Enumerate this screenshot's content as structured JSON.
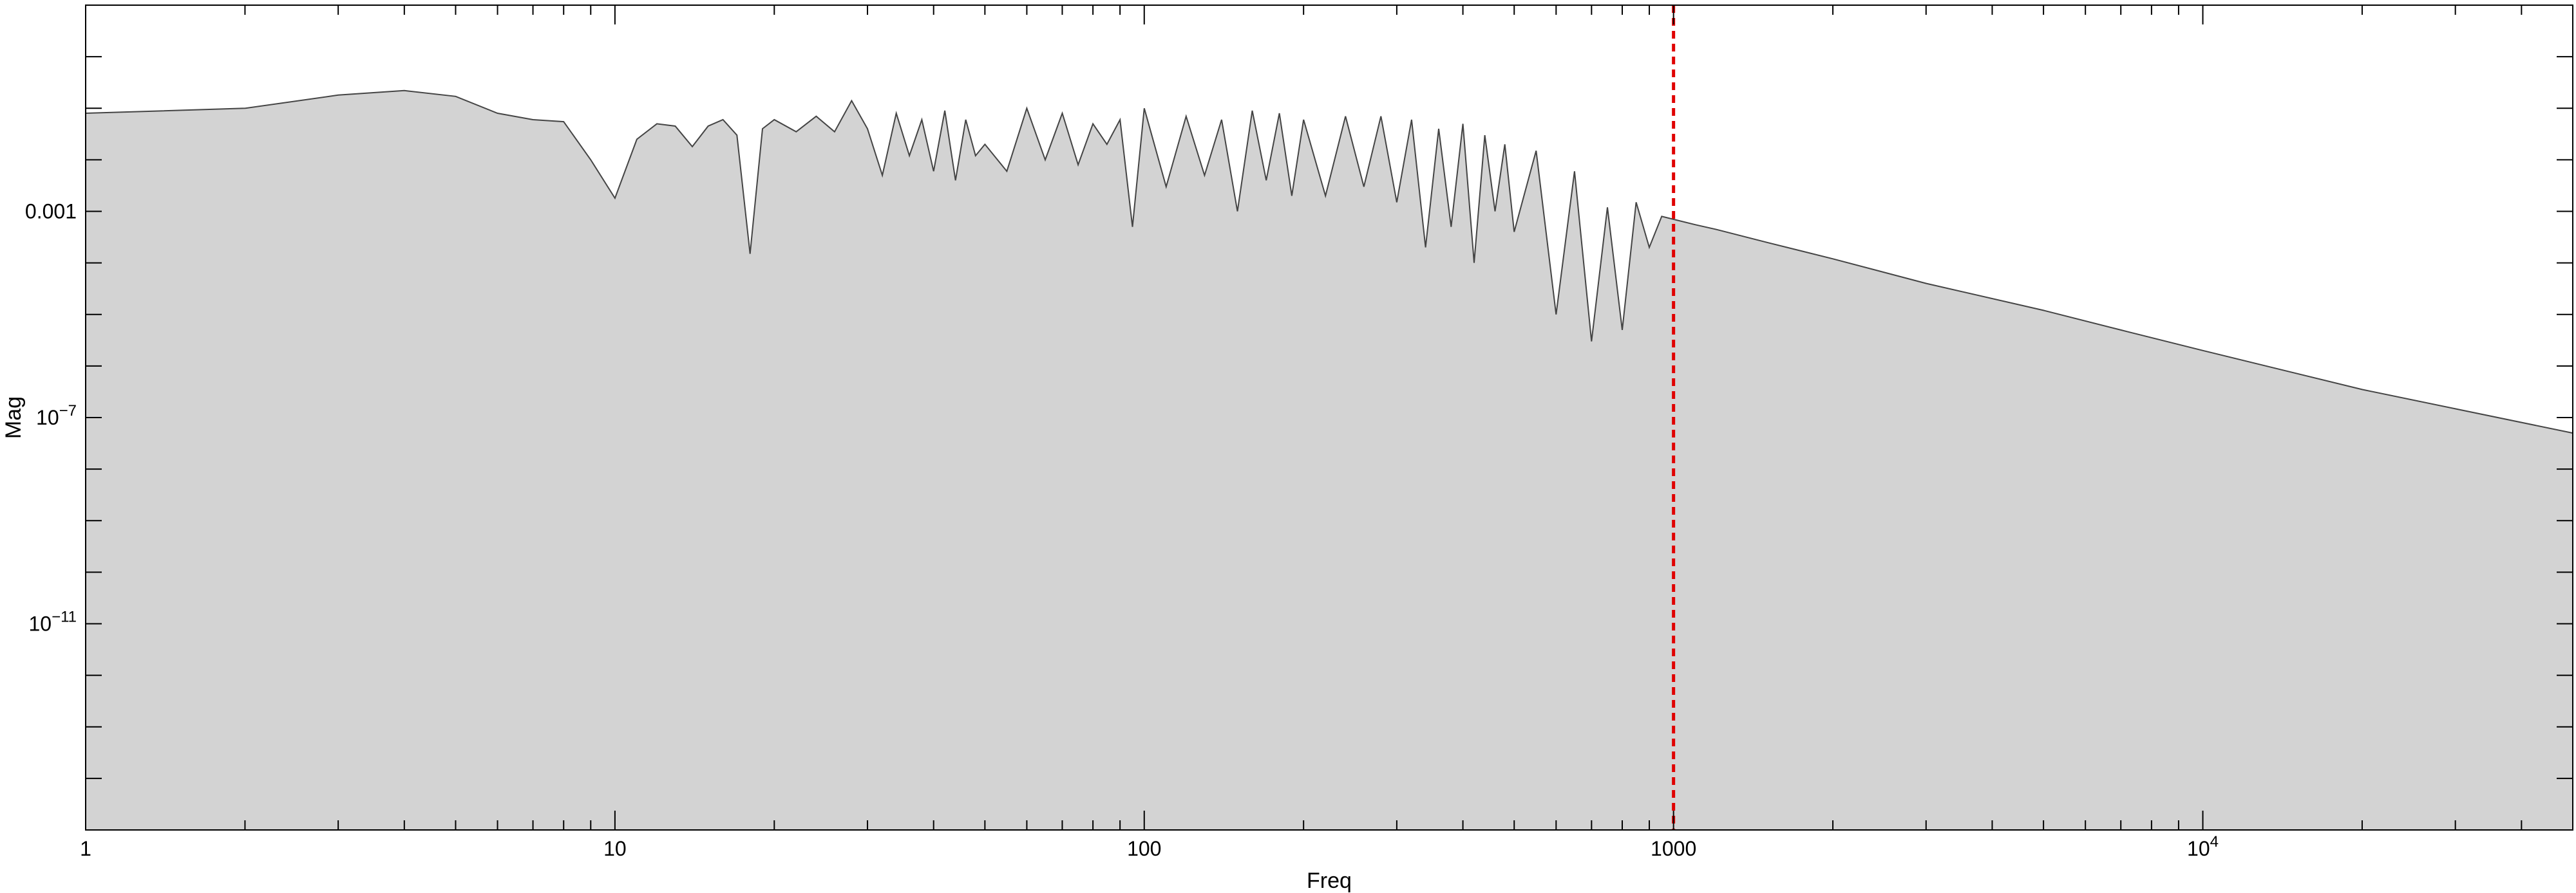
{
  "chart_data": {
    "type": "area",
    "title": "",
    "xlabel": "Freq",
    "ylabel": "Mag",
    "xscale": "log",
    "yscale": "log",
    "xlim": [
      1,
      50000
    ],
    "ylim": [
      1e-15,
      10
    ],
    "grid": false,
    "x_ticks": [
      {
        "value": 1,
        "label": "1"
      },
      {
        "value": 10,
        "label": "10"
      },
      {
        "value": 100,
        "label": "100"
      },
      {
        "value": 1000,
        "label": "1000"
      },
      {
        "value": 10000,
        "label": "10",
        "exp": "4"
      }
    ],
    "y_ticks": [
      {
        "value": 0.001,
        "label": "0.001"
      },
      {
        "value": 1e-07,
        "label": "10",
        "exp": "−7"
      },
      {
        "value": 1e-11,
        "label": "10",
        "exp": "−11"
      }
    ],
    "series": [
      {
        "x": [
          1,
          2,
          3,
          4,
          5,
          6,
          7,
          8,
          9,
          10,
          11,
          12,
          13,
          14,
          15,
          16,
          17,
          18,
          19,
          20,
          22,
          24,
          26,
          28,
          30,
          32,
          34,
          36,
          38,
          40,
          42,
          44,
          46,
          48,
          50,
          55,
          60,
          65,
          70,
          75,
          80,
          85,
          90,
          95,
          100,
          110,
          120,
          130,
          140,
          150,
          160,
          170,
          180,
          190,
          200,
          220,
          240,
          260,
          280,
          300,
          320,
          340,
          360,
          380,
          400,
          420,
          440,
          460,
          480,
          500,
          550,
          600,
          650,
          700,
          750,
          800,
          850,
          900,
          950,
          1000,
          1100,
          1200,
          1500,
          2000,
          3000,
          5000,
          7000,
          10000,
          20000,
          50000
        ],
        "y": [
          0.08,
          0.1,
          0.18,
          0.22,
          0.17,
          0.08,
          0.06,
          0.055,
          0.01,
          0.0018,
          0.025,
          0.05,
          0.045,
          0.018,
          0.045,
          0.06,
          0.03,
          0.00015,
          0.04,
          0.06,
          0.035,
          0.07,
          0.035,
          0.14,
          0.04,
          0.005,
          0.08,
          0.012,
          0.06,
          0.006,
          0.09,
          0.004,
          0.06,
          0.012,
          0.02,
          0.006,
          0.1,
          0.01,
          0.08,
          0.008,
          0.05,
          0.02,
          0.06,
          0.0005,
          0.1,
          0.003,
          0.07,
          0.005,
          0.06,
          0.001,
          0.09,
          0.004,
          0.08,
          0.002,
          0.06,
          0.002,
          0.07,
          0.003,
          0.07,
          0.0015,
          0.06,
          0.0002,
          0.04,
          0.0005,
          0.05,
          0.0001,
          0.03,
          0.001,
          0.02,
          0.0004,
          0.015,
          1e-05,
          0.006,
          3e-06,
          0.0012,
          5e-06,
          0.0015,
          0.0002,
          0.0008,
          0.0007,
          0.00055,
          0.00045,
          0.00025,
          0.00012,
          4e-05,
          1.2e-05,
          5e-06,
          2e-06,
          3.5e-07,
          5e-08
        ]
      }
    ],
    "annotations": [
      {
        "type": "vline",
        "x": 1000,
        "color": "#e00000",
        "style": "dashed"
      }
    ],
    "colors": {
      "fill": "#d3d3d3",
      "line": "#444444",
      "marker_line": "#e00000"
    }
  }
}
